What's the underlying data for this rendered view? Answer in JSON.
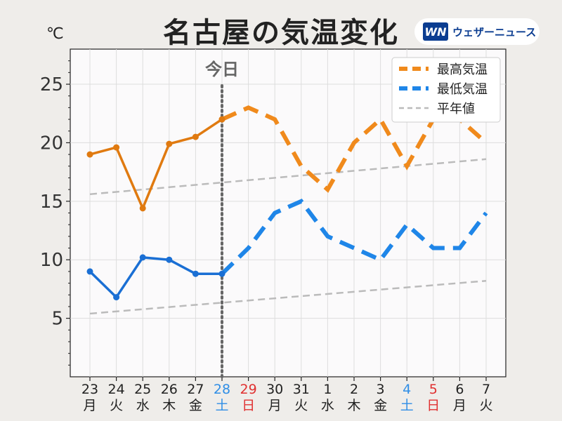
{
  "title": "名古屋の気温変化",
  "unit": "℃",
  "brand": {
    "logo": "WN",
    "name": "ウェザーニュース"
  },
  "today_label": "今日",
  "colors": {
    "max": "#e07a10",
    "max_forecast": "#f08a1c",
    "min": "#1a6fd4",
    "min_forecast": "#1f86e8",
    "normal": "#bbbbbb",
    "today_line": "#666666",
    "sat": "#2f8ee6",
    "sun": "#e03030",
    "weekday": "#222222"
  },
  "chart_data": {
    "type": "line",
    "ylim": [
      0,
      28
    ],
    "yticks": [
      5,
      10,
      15,
      20,
      25
    ],
    "grid": true,
    "legend_position": "top-right",
    "categories": [
      {
        "date": "23",
        "dow": "月",
        "kind": "weekday"
      },
      {
        "date": "24",
        "dow": "火",
        "kind": "weekday"
      },
      {
        "date": "25",
        "dow": "水",
        "kind": "weekday"
      },
      {
        "date": "26",
        "dow": "木",
        "kind": "weekday"
      },
      {
        "date": "27",
        "dow": "金",
        "kind": "weekday"
      },
      {
        "date": "28",
        "dow": "土",
        "kind": "sat"
      },
      {
        "date": "29",
        "dow": "日",
        "kind": "sun"
      },
      {
        "date": "30",
        "dow": "月",
        "kind": "weekday"
      },
      {
        "date": "31",
        "dow": "火",
        "kind": "weekday"
      },
      {
        "date": "1",
        "dow": "水",
        "kind": "weekday"
      },
      {
        "date": "2",
        "dow": "木",
        "kind": "weekday"
      },
      {
        "date": "3",
        "dow": "金",
        "kind": "weekday"
      },
      {
        "date": "4",
        "dow": "土",
        "kind": "sat"
      },
      {
        "date": "5",
        "dow": "日",
        "kind": "sun"
      },
      {
        "date": "6",
        "dow": "月",
        "kind": "weekday"
      },
      {
        "date": "7",
        "dow": "火",
        "kind": "weekday"
      }
    ],
    "today_index": 5,
    "series": [
      {
        "name": "最高気温",
        "key": "max",
        "observed": [
          19.0,
          19.6,
          14.4,
          19.9,
          20.5,
          22.0
        ],
        "forecast": [
          22.0,
          23.0,
          22.0,
          18.0,
          16.0,
          20.0,
          22.0,
          18.0,
          22.0,
          22.0,
          20.0
        ]
      },
      {
        "name": "最低気温",
        "key": "min",
        "observed": [
          9.0,
          6.8,
          10.2,
          10.0,
          8.8,
          8.8
        ],
        "forecast": [
          8.8,
          11.0,
          14.0,
          15.0,
          12.0,
          11.0,
          10.0,
          13.0,
          11.0,
          11.0,
          14.0
        ]
      }
    ],
    "normals": [
      {
        "name": "平年値",
        "start": 15.6,
        "end": 18.6
      },
      {
        "name": "平年値",
        "start": 5.4,
        "end": 8.2
      }
    ]
  }
}
